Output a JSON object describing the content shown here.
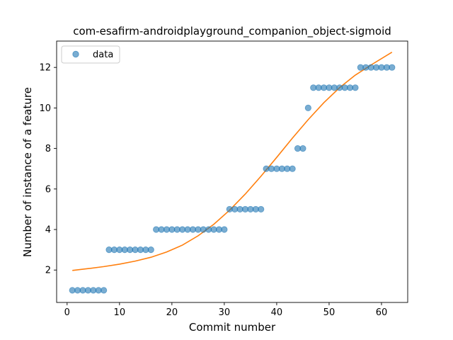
{
  "chart_data": {
    "type": "scatter",
    "title": "com-esafirm-androidplayground_companion_object-sigmoid",
    "xlabel": "Commit number",
    "ylabel": "Number of instance of a feature",
    "xlim": [
      -2,
      65
    ],
    "ylim": [
      0.4,
      13.3
    ],
    "xticks": [
      0,
      10,
      20,
      30,
      40,
      50,
      60
    ],
    "yticks": [
      2,
      4,
      6,
      8,
      10,
      12
    ],
    "grid": false,
    "legend_position": "top-left",
    "series": [
      {
        "name": "data",
        "kind": "points",
        "color": "#1f77b4",
        "x": [
          1,
          2,
          3,
          4,
          5,
          6,
          7,
          8,
          9,
          10,
          11,
          12,
          13,
          14,
          15,
          16,
          17,
          18,
          19,
          20,
          21,
          22,
          23,
          24,
          25,
          26,
          27,
          28,
          29,
          30,
          31,
          32,
          33,
          34,
          35,
          36,
          37,
          38,
          39,
          40,
          41,
          42,
          43,
          44,
          45,
          46,
          47,
          48,
          49,
          50,
          51,
          52,
          53,
          54,
          55,
          56,
          57,
          58,
          59,
          60,
          61,
          62
        ],
        "y": [
          1,
          1,
          1,
          1,
          1,
          1,
          1,
          3,
          3,
          3,
          3,
          3,
          3,
          3,
          3,
          3,
          4,
          4,
          4,
          4,
          4,
          4,
          4,
          4,
          4,
          4,
          4,
          4,
          4,
          4,
          5,
          5,
          5,
          5,
          5,
          5,
          5,
          7,
          7,
          7,
          7,
          7,
          7,
          8,
          8,
          10,
          11,
          11,
          11,
          11,
          11,
          11,
          11,
          11,
          11,
          12,
          12,
          12,
          12,
          12,
          12,
          12
        ]
      },
      {
        "kind": "fit-line",
        "color": "#ff7f0e",
        "x": [
          1,
          4,
          7,
          10,
          13,
          16,
          19,
          22,
          25,
          28,
          31,
          34,
          37,
          40,
          43,
          46,
          49,
          52,
          55,
          58,
          62
        ],
        "y": [
          1.98,
          2.07,
          2.17,
          2.29,
          2.44,
          2.63,
          2.89,
          3.23,
          3.69,
          4.26,
          4.95,
          5.75,
          6.63,
          7.56,
          8.51,
          9.42,
          10.26,
          11.0,
          11.62,
          12.12,
          12.75
        ]
      }
    ]
  }
}
